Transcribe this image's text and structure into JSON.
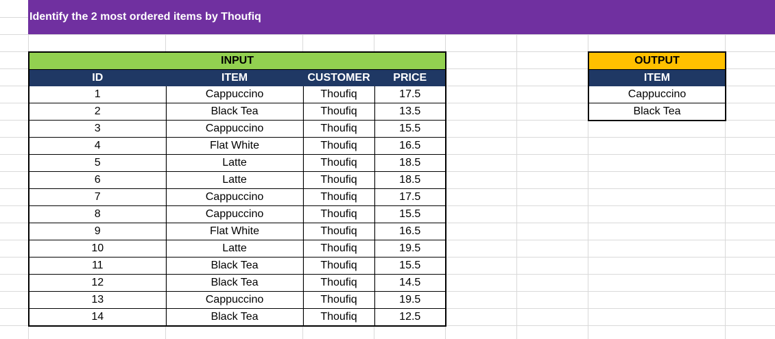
{
  "title": "Identify the 2 most ordered items by Thoufiq",
  "input": {
    "banner": "INPUT",
    "headers": [
      "ID",
      "ITEM",
      "CUSTOMER",
      "PRICE"
    ],
    "rows": [
      [
        "1",
        "Cappuccino",
        "Thoufiq",
        "17.5"
      ],
      [
        "2",
        "Black Tea",
        "Thoufiq",
        "13.5"
      ],
      [
        "3",
        "Cappuccino",
        "Thoufiq",
        "15.5"
      ],
      [
        "4",
        "Flat White",
        "Thoufiq",
        "16.5"
      ],
      [
        "5",
        "Latte",
        "Thoufiq",
        "18.5"
      ],
      [
        "6",
        "Latte",
        "Thoufiq",
        "18.5"
      ],
      [
        "7",
        "Cappuccino",
        "Thoufiq",
        "17.5"
      ],
      [
        "8",
        "Cappuccino",
        "Thoufiq",
        "15.5"
      ],
      [
        "9",
        "Flat White",
        "Thoufiq",
        "16.5"
      ],
      [
        "10",
        "Latte",
        "Thoufiq",
        "19.5"
      ],
      [
        "11",
        "Black Tea",
        "Thoufiq",
        "15.5"
      ],
      [
        "12",
        "Black Tea",
        "Thoufiq",
        "14.5"
      ],
      [
        "13",
        "Cappuccino",
        "Thoufiq",
        "19.5"
      ],
      [
        "14",
        "Black Tea",
        "Thoufiq",
        "12.5"
      ]
    ]
  },
  "output": {
    "banner": "OUTPUT",
    "header": "ITEM",
    "rows": [
      "Cappuccino",
      "Black Tea"
    ]
  },
  "colors": {
    "title_bar": "#7030a0",
    "input_banner": "#92d050",
    "output_banner": "#ffc000",
    "header_fill": "#1f3864"
  }
}
